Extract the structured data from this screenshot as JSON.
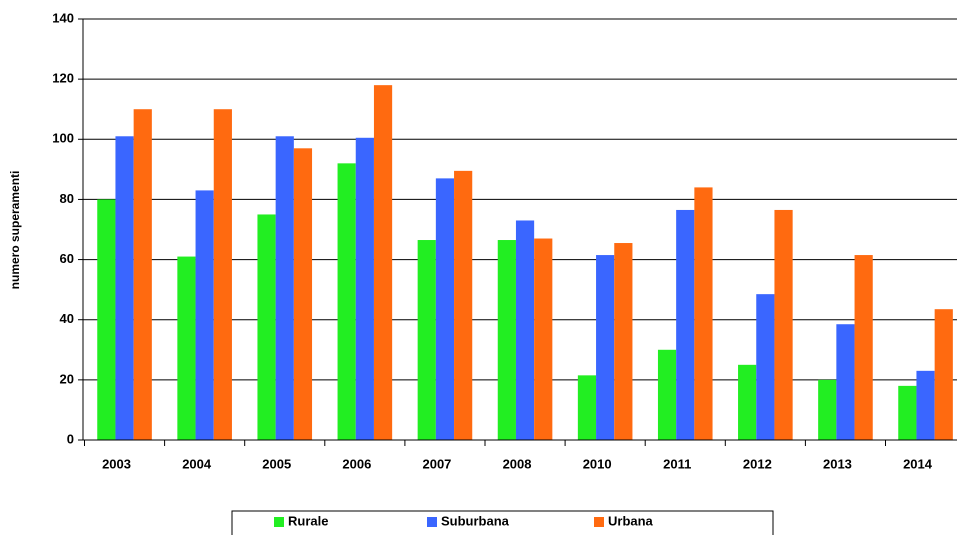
{
  "chart_data": {
    "type": "bar",
    "y_label": "numero superamenti",
    "categories": [
      "2003",
      "2004",
      "2005",
      "2006",
      "2007",
      "2008",
      "2010",
      "2011",
      "2012",
      "2013",
      "2014"
    ],
    "series": [
      {
        "name": "Rurale",
        "color": "#22ee22",
        "values": [
          80,
          61,
          75,
          92,
          66.5,
          66.5,
          21.5,
          30,
          25,
          20,
          18
        ]
      },
      {
        "name": "Suburbana",
        "color": "#3a66ff",
        "values": [
          101,
          83,
          101,
          100.5,
          87,
          73,
          61.5,
          76.5,
          48.5,
          38.5,
          23
        ]
      },
      {
        "name": "Urbana",
        "color": "#ff6a10",
        "values": [
          110,
          110,
          97,
          118,
          89.5,
          67,
          65.5,
          84,
          76.5,
          61.5,
          43.5
        ]
      }
    ],
    "ylim": [
      0,
      140
    ],
    "yticks": [
      0,
      20,
      40,
      60,
      80,
      100,
      120,
      140
    ],
    "grid": true,
    "legend": "bottom"
  }
}
